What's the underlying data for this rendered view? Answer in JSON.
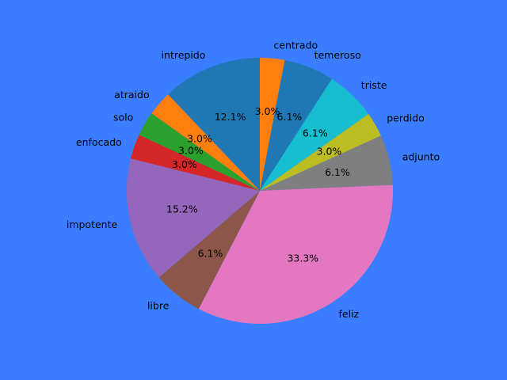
{
  "chart_data": {
    "type": "pie",
    "labels": [
      "centrado",
      "temeroso",
      "triste",
      "perdido",
      "adjunto",
      "feliz",
      "libre",
      "impotente",
      "enfocado",
      "solo",
      "atraido",
      "intrepido"
    ],
    "values": [
      3.0,
      6.1,
      6.1,
      3.0,
      6.1,
      33.3,
      6.1,
      15.2,
      3.0,
      3.0,
      3.0,
      12.1
    ],
    "percent_labels": [
      "3.0%",
      "6.1%",
      "6.1%",
      "3.0%",
      "6.1%",
      "33.3%",
      "6.1%",
      "15.2%",
      "3.0%",
      "3.0%",
      "3.0%",
      "12.1%"
    ],
    "colors": [
      "#ff7f0e",
      "#1f77b4",
      "#17becf",
      "#bcbd22",
      "#7f7f7f",
      "#e377c2",
      "#8c564b",
      "#9467bd",
      "#d62728",
      "#2ca02c",
      "#ff7f0e",
      "#1f77b4"
    ],
    "start_angle_deg": 90,
    "direction": "counterclockwise-from-top, drawn reversed order",
    "background": "#3a7eff"
  }
}
